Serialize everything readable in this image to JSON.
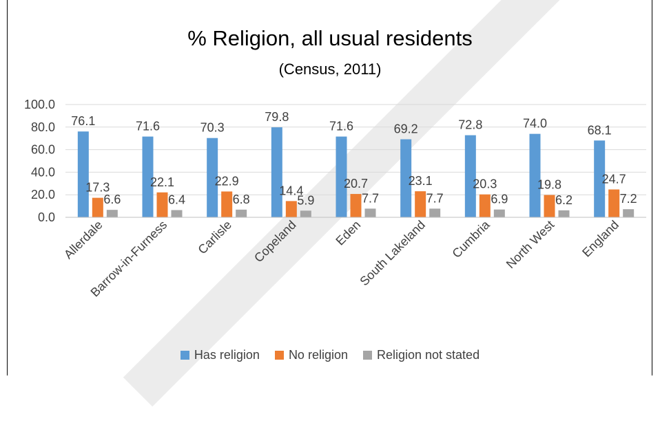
{
  "chart_data": {
    "type": "bar",
    "title": "% Religion, all usual residents",
    "subtitle": "(Census, 2011)",
    "categories": [
      "Allerdale",
      "Barrow-in-Furness",
      "Carlisle",
      "Copeland",
      "Eden",
      "South Lakeland",
      "Cumbria",
      "North West",
      "England"
    ],
    "series": [
      {
        "name": "Has religion",
        "color": "#5B9BD5",
        "values": [
          76.1,
          71.6,
          70.3,
          79.8,
          71.6,
          69.2,
          72.8,
          74.0,
          68.1
        ]
      },
      {
        "name": "No religion",
        "color": "#ED7D31",
        "values": [
          17.3,
          22.1,
          22.9,
          14.4,
          20.7,
          23.1,
          20.3,
          19.8,
          24.7
        ]
      },
      {
        "name": "Religion not stated",
        "color": "#A5A5A5",
        "values": [
          6.6,
          6.4,
          6.8,
          5.9,
          7.7,
          7.7,
          6.9,
          6.2,
          7.2
        ]
      }
    ],
    "ylim": [
      0,
      100
    ],
    "yticks": [
      "0.0",
      "20.0",
      "40.0",
      "60.0",
      "80.0",
      "100.0"
    ],
    "grid": true,
    "legend_position": "bottom",
    "data_labels": true
  }
}
